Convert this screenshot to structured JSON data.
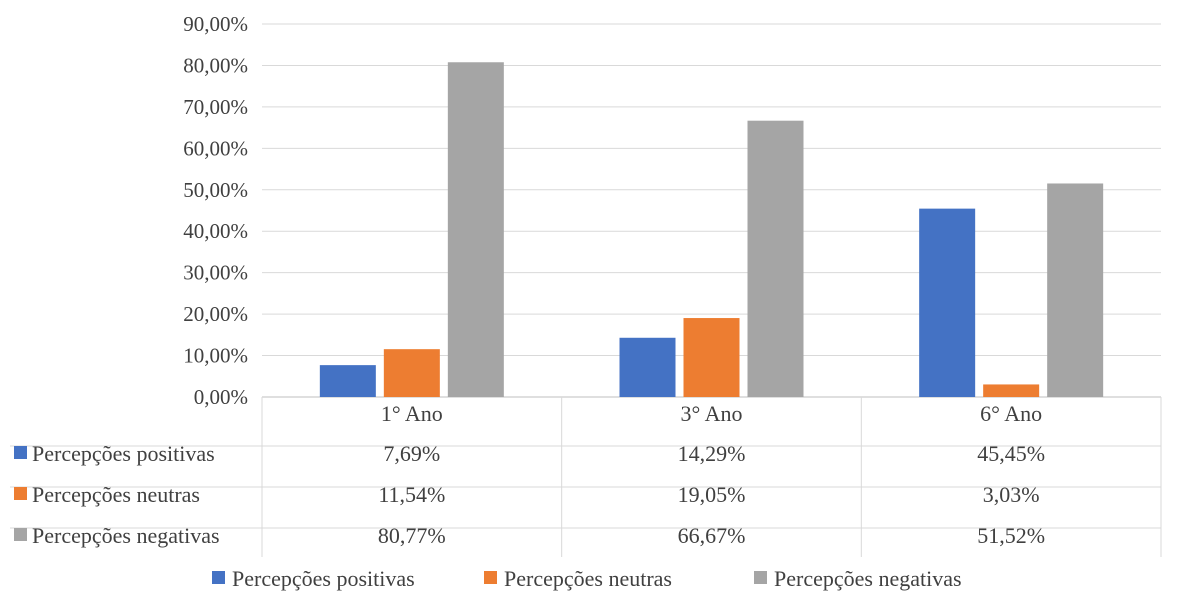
{
  "chart_data": {
    "type": "bar",
    "title": "",
    "xlabel": "",
    "ylabel": "",
    "categories": [
      "1° Ano",
      "3° Ano",
      "6° Ano"
    ],
    "ylim": [
      0,
      90
    ],
    "yticks": [
      0,
      10,
      20,
      30,
      40,
      50,
      60,
      70,
      80,
      90
    ],
    "ytick_labels": [
      "0,00%",
      "10,00%",
      "20,00%",
      "30,00%",
      "40,00%",
      "50,00%",
      "60,00%",
      "70,00%",
      "80,00%",
      "90,00%"
    ],
    "grid": true,
    "legend_position": "bottom",
    "data_table": true,
    "series": [
      {
        "name": "Percepções positivas",
        "color": "#4472C4",
        "values": [
          7.69,
          14.29,
          45.45
        ],
        "labels": [
          "7,69%",
          "14,29%",
          "45,45%"
        ]
      },
      {
        "name": "Percepções neutras",
        "color": "#ED7D31",
        "values": [
          11.54,
          19.05,
          3.03
        ],
        "labels": [
          "11,54%",
          "19,05%",
          "3,03%"
        ]
      },
      {
        "name": "Percepções negativas",
        "color": "#A5A5A5",
        "values": [
          80.77,
          66.67,
          51.52
        ],
        "labels": [
          "80,77%",
          "66,67%",
          "51,52%"
        ]
      }
    ]
  }
}
